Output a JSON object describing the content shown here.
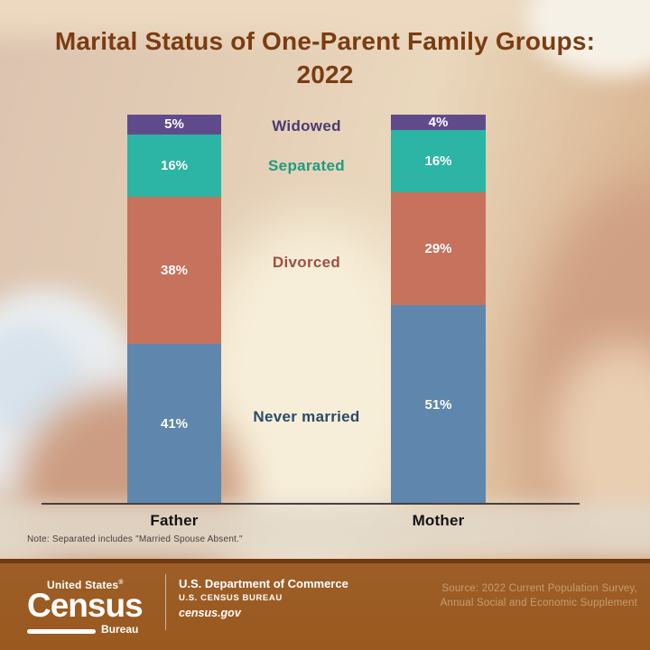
{
  "title": "Marital Status of One-Parent Family Groups: 2022",
  "chart_data": {
    "type": "bar",
    "stacked": true,
    "orientation": "vertical",
    "categories": [
      "Father",
      "Mother"
    ],
    "series": [
      {
        "name": "Widowed",
        "values": [
          5,
          4
        ],
        "color": "#5f4b8c",
        "label_color": "#4a3a72"
      },
      {
        "name": "Separated",
        "values": [
          16,
          16
        ],
        "color": "#2cb5a4",
        "label_color": "#1f9b82"
      },
      {
        "name": "Divorced",
        "values": [
          38,
          29
        ],
        "color": "#c7725c",
        "label_color": "#9e5044"
      },
      {
        "name": "Never married",
        "values": [
          41,
          51
        ],
        "color": "#5f87ae",
        "label_color": "#2b4a68"
      }
    ],
    "value_suffix": "%",
    "ylim": [
      0,
      100
    ],
    "grid": false,
    "legend_position": "between-bars",
    "title": "Marital Status of One-Parent Family Groups: 2022"
  },
  "note": "Note: Separated includes \"Married Spouse Absent.\"",
  "footer": {
    "logo": {
      "top": "United States",
      "reg": "®",
      "main": "Census",
      "sub": "Bureau"
    },
    "dept_line1": "U.S. Department of Commerce",
    "dept_line2": "U.S. CENSUS BUREAU",
    "dept_line3": "census.gov",
    "source_line1": "Source: 2022 Current Population Survey,",
    "source_line2": "Annual Social and Economic Supplement"
  },
  "colors": {
    "title_text": "#7a3c12",
    "bar_value_text": "#ffffff",
    "axis_line": "#474240",
    "category_text": "#141414",
    "note_text": "#45403c",
    "footer_background": "#9a5a22",
    "footer_top_edge": "#6f3a12",
    "footer_text": "#ffffff",
    "source_text": "#c59e72"
  }
}
